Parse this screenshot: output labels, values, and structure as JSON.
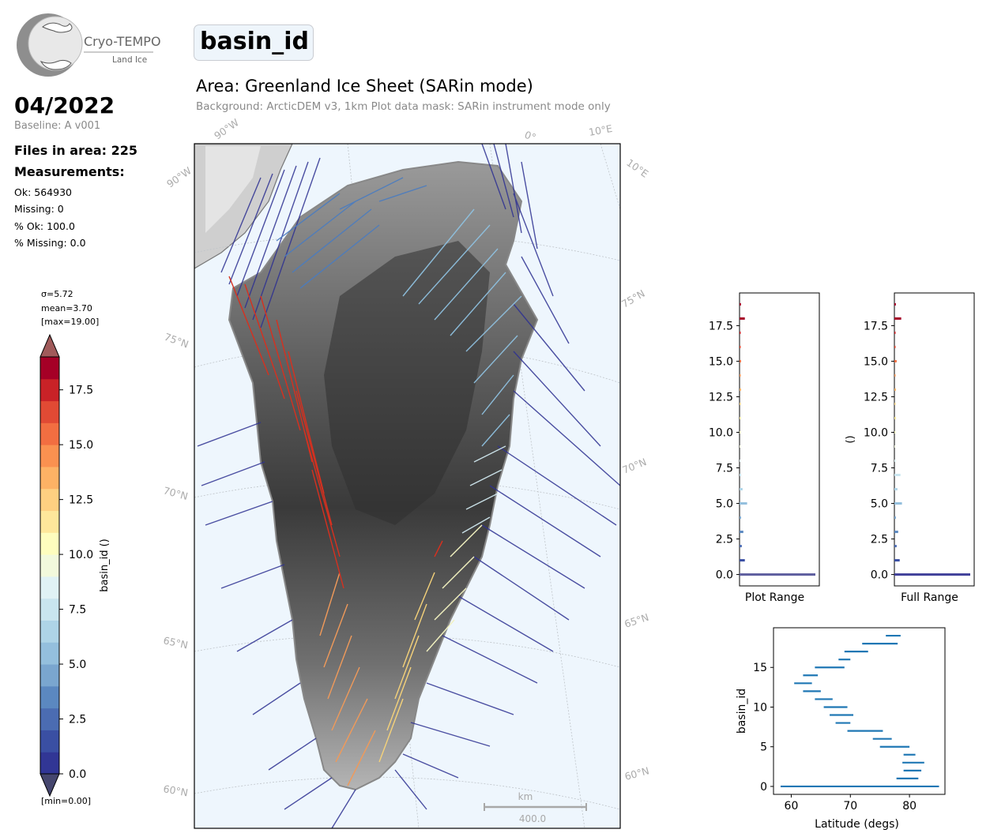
{
  "logo": {
    "name": "Cryo-TEMPO",
    "subtitle": "Land Ice"
  },
  "header": {
    "variable": "basin_id",
    "area_title": "Area: Greenland Ice Sheet (SARin mode)",
    "area_subtitle": "Background: ArcticDEM v3, 1km   Plot data mask: SARin instrument mode only"
  },
  "sidebar": {
    "date": "04/2022",
    "baseline": "Baseline: A v001",
    "files": "Files in area: 225",
    "measurements_heading": "Measurements:",
    "ok": "Ok: 564930",
    "missing": "Missing: 0",
    "pct_ok": "% Ok: 100.0",
    "pct_missing": "% Missing: 0.0"
  },
  "colorbar": {
    "sigma": "σ=5.72",
    "mean": "mean=3.70",
    "max": "[max=19.00]",
    "min": "[min=0.00]",
    "label": "basin_id ()",
    "ticks": [
      0.0,
      2.5,
      5.0,
      7.5,
      10.0,
      12.5,
      15.0,
      17.5
    ],
    "tick_labels": [
      "0.0",
      "2.5",
      "5.0",
      "7.5",
      "10.0",
      "12.5",
      "15.0",
      "17.5"
    ],
    "range": [
      0,
      19
    ],
    "levels": 19
  },
  "map": {
    "lon_labels": [
      "90°W",
      "90°W",
      "0°",
      "10°E",
      "10°E"
    ],
    "lat_labels_left": [
      "75°N",
      "70°N",
      "65°N",
      "60°N"
    ],
    "lat_labels_right": [
      "75°N",
      "70°N",
      "65°N",
      "60°N"
    ],
    "scale_unit": "km",
    "scale_value": "400.0"
  },
  "chart_data": [
    {
      "type": "bar",
      "orientation": "horizontal",
      "xlabel": "Plot Range",
      "ylabel": "",
      "ylim": [
        -0.8,
        19.8
      ],
      "yticks": [
        "0.0",
        "2.5",
        "5.0",
        "7.5",
        "10.0",
        "12.5",
        "15.0",
        "17.5"
      ],
      "categories": [
        0,
        1,
        2,
        3,
        4,
        5,
        6,
        7,
        8,
        9,
        10,
        11,
        12,
        13,
        14,
        15,
        16,
        17,
        18,
        19
      ],
      "values": [
        1.0,
        0.07,
        0.03,
        0.05,
        0.02,
        0.1,
        0.04,
        0.02,
        0.01,
        0.01,
        0.01,
        0.01,
        0.01,
        0.02,
        0.01,
        0.02,
        0.01,
        0.01,
        0.07,
        0.02
      ]
    },
    {
      "type": "bar",
      "orientation": "horizontal",
      "xlabel": "Full Range",
      "ylabel": "()",
      "ylim": [
        -0.8,
        19.8
      ],
      "yticks": [
        "0.0",
        "2.5",
        "5.0",
        "7.5",
        "10.0",
        "12.5",
        "15.0",
        "17.5"
      ],
      "categories": [
        0,
        1,
        2,
        3,
        4,
        5,
        6,
        7,
        8,
        9,
        10,
        11,
        12,
        13,
        14,
        15,
        16,
        17,
        18,
        19
      ],
      "values": [
        1.0,
        0.07,
        0.03,
        0.05,
        0.02,
        0.1,
        0.04,
        0.08,
        0.02,
        0.01,
        0.01,
        0.02,
        0.01,
        0.02,
        0.01,
        0.03,
        0.01,
        0.01,
        0.09,
        0.02
      ]
    },
    {
      "type": "range",
      "xlabel": "Latitude (degs)",
      "ylabel": "basin_id",
      "xlim": [
        57,
        86
      ],
      "ylim": [
        -1,
        20
      ],
      "xticks": [
        "60",
        "70",
        "80"
      ],
      "yticks": [
        "0",
        "5",
        "10",
        "15"
      ],
      "series": [
        {
          "y": 0,
          "x0": 58.2,
          "x1": 85.0
        },
        {
          "y": 1,
          "x0": 77.8,
          "x1": 81.5
        },
        {
          "y": 2,
          "x0": 79.0,
          "x1": 82.0
        },
        {
          "y": 3,
          "x0": 78.8,
          "x1": 82.5
        },
        {
          "y": 4,
          "x0": 79.0,
          "x1": 81.0
        },
        {
          "y": 5,
          "x0": 75.0,
          "x1": 80.0
        },
        {
          "y": 6,
          "x0": 73.8,
          "x1": 77.0
        },
        {
          "y": 7,
          "x0": 69.5,
          "x1": 75.5
        },
        {
          "y": 8,
          "x0": 67.5,
          "x1": 70.0
        },
        {
          "y": 9,
          "x0": 66.5,
          "x1": 70.5
        },
        {
          "y": 10,
          "x0": 65.5,
          "x1": 69.5
        },
        {
          "y": 11,
          "x0": 64.0,
          "x1": 67.0
        },
        {
          "y": 12,
          "x0": 62.0,
          "x1": 65.0
        },
        {
          "y": 13,
          "x0": 60.5,
          "x1": 63.5
        },
        {
          "y": 14,
          "x0": 62.0,
          "x1": 64.5
        },
        {
          "y": 15,
          "x0": 64.0,
          "x1": 69.0
        },
        {
          "y": 16,
          "x0": 68.0,
          "x1": 70.0
        },
        {
          "y": 17,
          "x0": 69.0,
          "x1": 73.0
        },
        {
          "y": 18,
          "x0": 72.0,
          "x1": 78.0
        },
        {
          "y": 19,
          "x0": 76.0,
          "x1": 78.5
        }
      ]
    }
  ]
}
